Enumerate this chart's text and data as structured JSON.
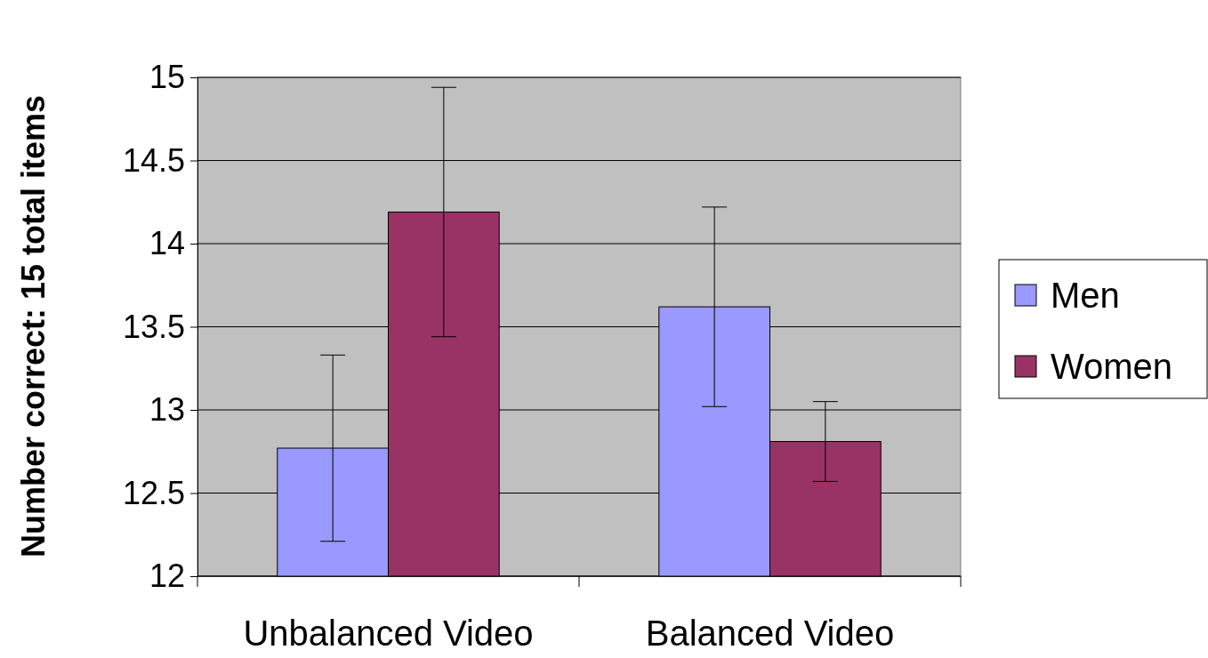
{
  "chart_data": {
    "type": "bar",
    "ylabel": "Number correct: 15 total items",
    "categories": [
      "Unbalanced Video",
      "Balanced Video"
    ],
    "series": [
      {
        "name": "Men",
        "color": "#9999ff",
        "values": [
          12.77,
          13.62
        ],
        "errors": [
          0.56,
          0.6
        ]
      },
      {
        "name": "Women",
        "color": "#993366",
        "values": [
          14.19,
          12.81
        ],
        "errors": [
          0.75,
          0.24
        ]
      }
    ],
    "ylim": [
      12,
      15
    ],
    "yticks": [
      12,
      12.5,
      13,
      13.5,
      14,
      14.5,
      15
    ],
    "grid": "y",
    "legend": "right"
  }
}
